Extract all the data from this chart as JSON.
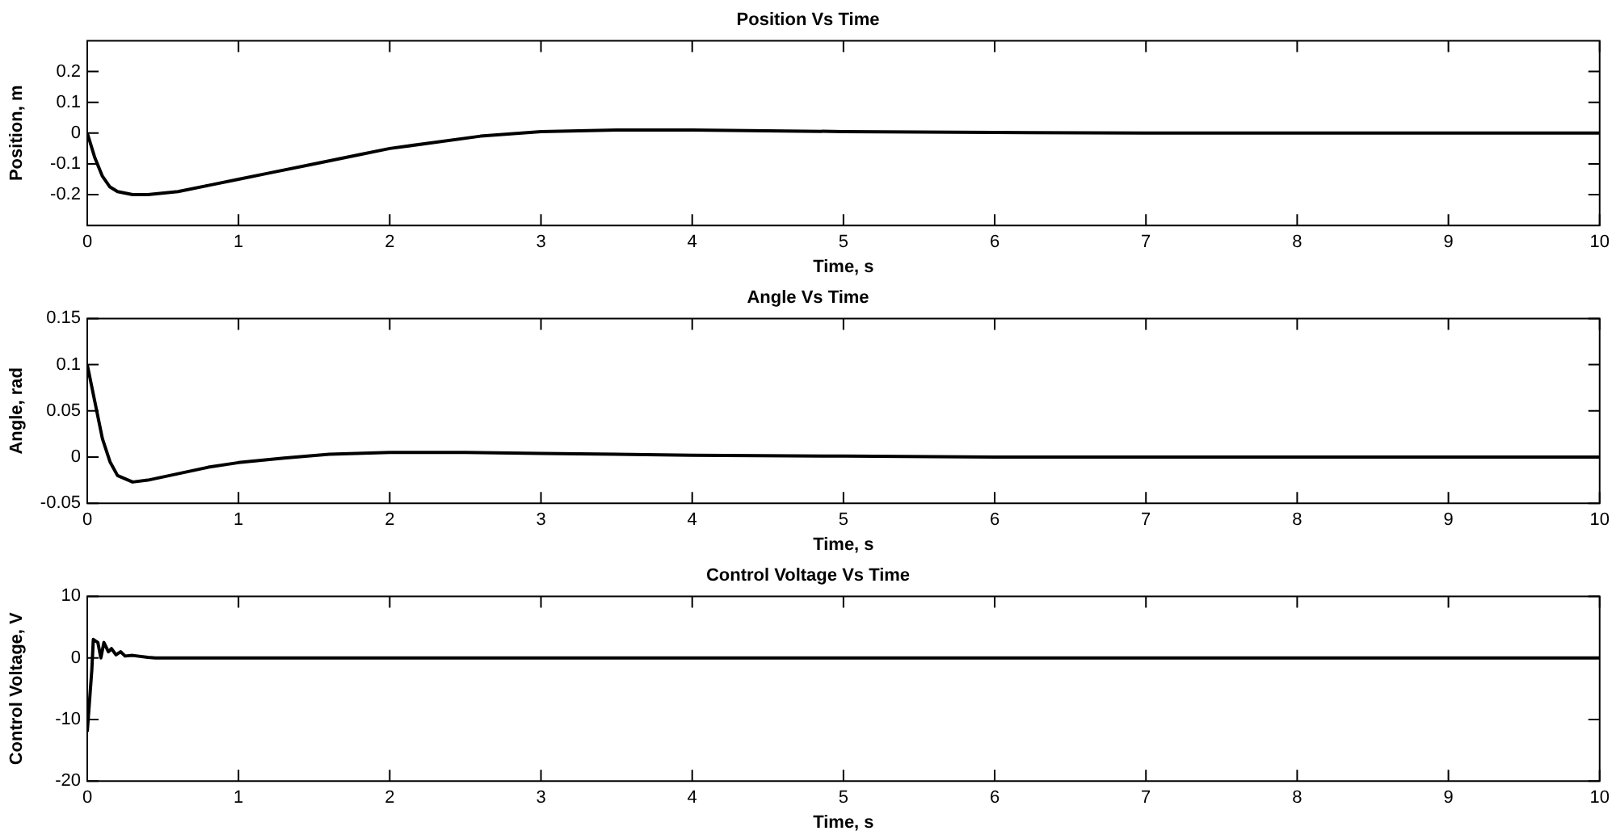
{
  "chart_data": [
    {
      "type": "line",
      "title": "Position Vs Time",
      "xlabel": "Time, s",
      "ylabel": "Position, m",
      "line_style": "solid",
      "x": [
        0,
        0.05,
        0.1,
        0.15,
        0.2,
        0.3,
        0.4,
        0.6,
        0.8,
        1.0,
        1.2,
        1.5,
        1.8,
        2.0,
        2.3,
        2.6,
        3.0,
        3.5,
        4,
        5,
        6,
        7,
        10
      ],
      "series": [
        {
          "color": "#000000",
          "values": [
            0,
            -0.08,
            -0.14,
            -0.175,
            -0.19,
            -0.2,
            -0.2,
            -0.19,
            -0.17,
            -0.15,
            -0.13,
            -0.1,
            -0.07,
            -0.05,
            -0.03,
            -0.01,
            0.005,
            0.01,
            0.01,
            0.005,
            0.002,
            0,
            0
          ]
        }
      ],
      "xlim": [
        0,
        10
      ],
      "xticks": [
        0,
        1,
        2,
        3,
        4,
        5,
        6,
        7,
        8,
        9,
        10
      ],
      "ylim": [
        -0.3,
        0.3
      ],
      "yticks": [
        -0.2,
        -0.1,
        0,
        0.1,
        0.2
      ]
    },
    {
      "type": "line",
      "title": "Angle Vs Time",
      "xlabel": "Time, s",
      "ylabel": "Angle, rad",
      "line_style": "solid",
      "x": [
        0,
        0.05,
        0.1,
        0.15,
        0.2,
        0.3,
        0.4,
        0.6,
        0.8,
        1.0,
        1.3,
        1.6,
        2,
        2.5,
        3,
        4,
        5,
        6,
        10
      ],
      "series": [
        {
          "color": "#000000",
          "values": [
            0.1,
            0.06,
            0.02,
            -0.005,
            -0.02,
            -0.027,
            -0.025,
            -0.018,
            -0.011,
            -0.006,
            -0.001,
            0.003,
            0.005,
            0.005,
            0.004,
            0.002,
            0.001,
            0,
            0
          ]
        }
      ],
      "xlim": [
        0,
        10
      ],
      "xticks": [
        0,
        1,
        2,
        3,
        4,
        5,
        6,
        7,
        8,
        9,
        10
      ],
      "ylim": [
        -0.05,
        0.15
      ],
      "yticks": [
        -0.05,
        0,
        0.05,
        0.1,
        0.15
      ]
    },
    {
      "type": "line",
      "title": "Control Voltage Vs Time",
      "xlabel": "Time, s",
      "ylabel": "Control Voltage, V",
      "line_style": "solid",
      "x": [
        0,
        0.01,
        0.03,
        0.04,
        0.07,
        0.09,
        0.11,
        0.14,
        0.16,
        0.19,
        0.22,
        0.25,
        0.3,
        0.4,
        0.45,
        10
      ],
      "series": [
        {
          "color": "#000000",
          "values": [
            -12,
            -12,
            -2,
            3,
            2.5,
            0,
            2.5,
            1,
            1.5,
            0.5,
            1,
            0.3,
            0.4,
            0.1,
            0,
            0
          ]
        }
      ],
      "xlim": [
        0,
        10
      ],
      "xticks": [
        0,
        1,
        2,
        3,
        4,
        5,
        6,
        7,
        8,
        9,
        10
      ],
      "ylim": [
        -20,
        10
      ],
      "yticks": [
        -20,
        -10,
        0,
        10
      ]
    }
  ]
}
